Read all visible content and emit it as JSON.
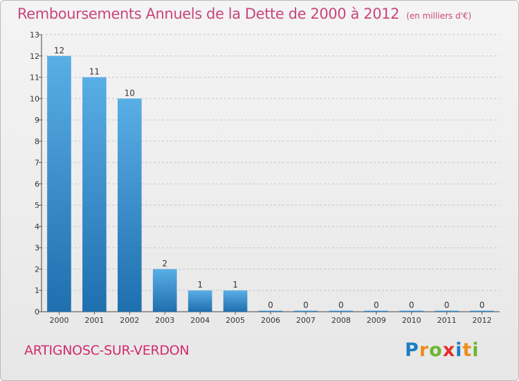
{
  "title": "Remboursements Annuels de la Dette de 2000 à 2012",
  "subtitle": "(en milliers d'€)",
  "commune": "ARTIGNOSC-SUR-VERDON",
  "logo": {
    "letters": [
      "P",
      "r",
      "o",
      "x",
      "i",
      "t",
      "i"
    ],
    "colors": [
      "#1b7fc4",
      "#f08c1a",
      "#6cb62e",
      "#e52e2e",
      "#1b7fc4",
      "#f08c1a",
      "#6cb62e"
    ]
  },
  "colors": {
    "bar_light": "#5aaee6",
    "bar_dark": "#1e6fae",
    "title": "#c8467b",
    "grid": "#c6c6c6"
  },
  "chart_data": {
    "type": "bar",
    "title": "Remboursements Annuels de la Dette de 2000 à 2012",
    "subtitle": "(en milliers d'€)",
    "categories": [
      "2000",
      "2001",
      "2002",
      "2003",
      "2004",
      "2005",
      "2006",
      "2007",
      "2008",
      "2009",
      "2010",
      "2011",
      "2012"
    ],
    "values": [
      12,
      11,
      10,
      2,
      1,
      1,
      0,
      0,
      0,
      0,
      0,
      0,
      0
    ],
    "ylim": [
      0,
      13
    ],
    "yticks": [
      0,
      1,
      2,
      3,
      4,
      5,
      6,
      7,
      8,
      9,
      10,
      11,
      12,
      13
    ],
    "grid": true
  }
}
